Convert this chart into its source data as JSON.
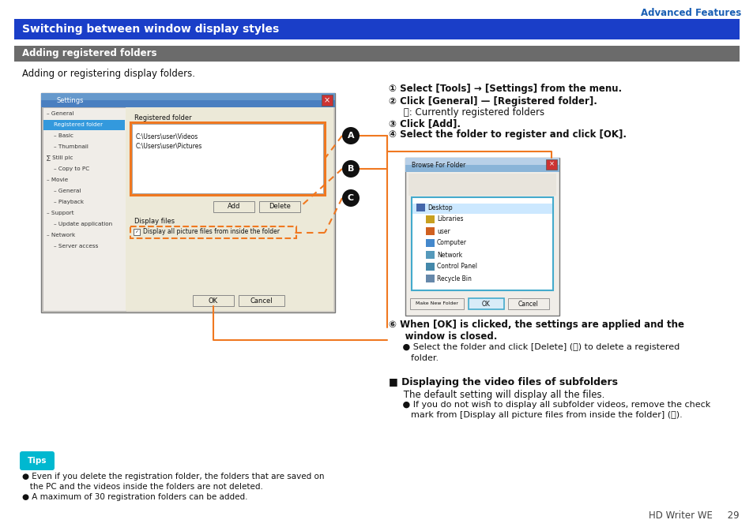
{
  "page_bg": "#ffffff",
  "header_text": "Advanced Features",
  "header_color": "#1a5fb4",
  "title_bar_text": "Switching between window display styles",
  "title_bar_bg": "#1a3ec8",
  "title_bar_text_color": "#ffffff",
  "subtitle_bar_text": "Adding registered folders",
  "subtitle_bar_bg": "#6b6b6b",
  "subtitle_bar_text_color": "#ffffff",
  "body_text": "Adding or registering display folders.",
  "step1": "① Select [Tools] → [Settings] from the menu.",
  "step2": "② Click [General] — [Registered folder].",
  "step2a": "     Ⓐ: Currently registered folders",
  "step3": "③ Click [Add].",
  "step4": "④ Select the folder to register and click [OK].",
  "step5_l1": "⑥ When [OK] is clicked, the settings are applied and the",
  "step5_l2": "     window is closed.",
  "step5b_l1": "     ● Select the folder and click [Delete] (Ⓑ) to delete a registered",
  "step5b_l2": "        folder.",
  "subfolder_title": "■ Displaying the video files of subfolders",
  "subfolder_l1": "     The default setting will display all the files.",
  "subfolder_l2": "     ● If you do not wish to display all subfolder videos, remove the check",
  "subfolder_l3": "        mark from [Display all picture files from inside the folder] (Ⓜ).",
  "tips_l1": "● Even if you delete the registration folder, the folders that are saved on",
  "tips_l2": "   the PC and the videos inside the folders are not deleted.",
  "tips_l3": "● A maximum of 30 registration folders can be added.",
  "footer_text": "HD Writer WE     29",
  "orange": "#f07820",
  "teal": "#00b8d0",
  "blue_icon": "#1a5fb4"
}
